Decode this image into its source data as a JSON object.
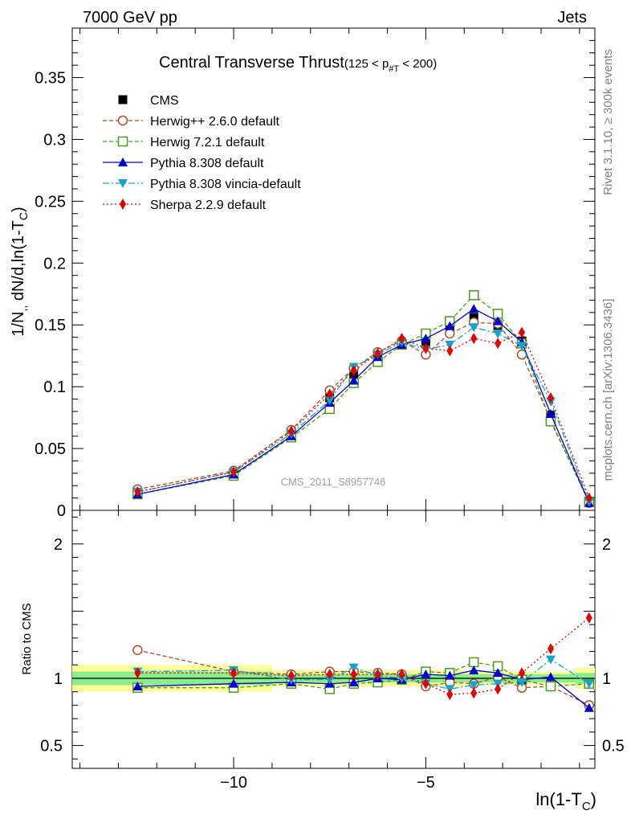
{
  "header": {
    "left": "7000 GeV pp",
    "right": "Jets"
  },
  "side_labels": {
    "rivet": "Rivet 3.1.10, ≥ 300k events",
    "mcplots": "mcplots.cern.ch [arXiv:1306.3436]"
  },
  "watermark": "CMS_2011_S8957746",
  "title": {
    "main": "Central Transverse Thrust",
    "range_a": "(125 < p",
    "range_sub": "#T",
    "range_b": " < 200)"
  },
  "chart_data": [
    {
      "type": "line",
      "panel": "main",
      "ylabel_parts": [
        "1/N",
        ",,",
        " dN/d,ln(1-T",
        "C",
        ")"
      ],
      "ylim": [
        0,
        0.39
      ],
      "xlim": [
        -14.2,
        -0.6
      ],
      "yticks": [
        "0",
        "0.05",
        "0.1",
        "0.15",
        "0.2",
        "0.25",
        "0.3",
        "0.35"
      ],
      "legend_placement": "top-left",
      "x": [
        -12.5,
        -10.0,
        -8.5,
        -7.5,
        -6.875,
        -6.25,
        -5.625,
        -5.0,
        -4.375,
        -3.75,
        -3.125,
        -2.5,
        -1.75,
        -0.75
      ],
      "series": [
        {
          "name": "CMS",
          "color": "#000000",
          "marker": "square-filled",
          "dash": "none",
          "values": [
            0.014,
            0.03,
            0.063,
            0.091,
            0.109,
            0.123,
            0.135,
            0.135,
            0.147,
            0.156,
            0.148,
            0.137,
            0.077,
            0.007
          ]
        },
        {
          "name": "Herwig++ 2.6.0 default",
          "color": "#a0522d",
          "marker": "circle-open",
          "dash": "5,3",
          "values": [
            0.017,
            0.032,
            0.065,
            0.097,
            0.115,
            0.128,
            0.137,
            0.126,
            0.143,
            0.152,
            0.151,
            0.126,
            0.073,
            0.006
          ]
        },
        {
          "name": "Herwig 7.2.1 default",
          "color": "#4a9a1e",
          "marker": "square-open",
          "dash": "5,3",
          "values": [
            0.013,
            0.028,
            0.059,
            0.082,
            0.103,
            0.12,
            0.134,
            0.143,
            0.153,
            0.174,
            0.159,
            0.135,
            0.072,
            0.007
          ]
        },
        {
          "name": "Pythia 8.308 default",
          "color": "#0000cc",
          "marker": "triangle-up",
          "dash": "none",
          "values": [
            0.013,
            0.029,
            0.06,
            0.087,
            0.105,
            0.124,
            0.134,
            0.139,
            0.149,
            0.163,
            0.153,
            0.136,
            0.078,
            0.006
          ]
        },
        {
          "name": "Pythia 8.308 vincia-default",
          "color": "#1aa3c4",
          "marker": "triangle-down",
          "dash": "8,3,2,3",
          "values": [
            0.015,
            0.031,
            0.062,
            0.089,
            0.116,
            0.126,
            0.136,
            0.13,
            0.134,
            0.148,
            0.143,
            0.133,
            0.088,
            0.007
          ]
        },
        {
          "name": "Sherpa 2.2.9 default",
          "color": "#e00000",
          "marker": "diamond",
          "dash": "2,3",
          "values": [
            0.015,
            0.031,
            0.064,
            0.094,
            0.113,
            0.127,
            0.139,
            0.131,
            0.129,
            0.139,
            0.135,
            0.144,
            0.091,
            0.01
          ]
        }
      ]
    },
    {
      "type": "line",
      "panel": "ratio",
      "xlabel_parts": [
        "ln(1-T",
        "C",
        ")"
      ],
      "ylabel": "Ratio to CMS",
      "ylim": [
        0.33,
        2.25
      ],
      "xticks": [
        "−10",
        "−5"
      ],
      "xtick_values": [
        -10,
        -5
      ],
      "yticks": [
        "0.5",
        "1",
        "2"
      ],
      "ytick_values": [
        0.5,
        1,
        2
      ],
      "bands": {
        "inner_color": "#8ced8c",
        "outer_color": "#ffff99",
        "segments": [
          {
            "x": [
              -14.2,
              -9.0
            ],
            "inner": [
              0.95,
              1.05
            ],
            "outer": [
              0.9,
              1.1
            ]
          },
          {
            "x": [
              -9.0,
              -4.0
            ],
            "inner": [
              0.97,
              1.03
            ],
            "outer": [
              0.94,
              1.06
            ]
          },
          {
            "x": [
              -4.0,
              -1.1
            ],
            "inner": [
              0.97,
              1.03
            ],
            "outer": [
              0.95,
              1.05
            ]
          },
          {
            "x": [
              -1.1,
              -0.6
            ],
            "inner": [
              0.96,
              1.04
            ],
            "outer": [
              0.92,
              1.08
            ]
          }
        ]
      },
      "series": [
        {
          "name": "Herwig++ 2.6.0 default",
          "color": "#a0522d",
          "marker": "circle-open",
          "dash": "5,3",
          "values": [
            1.21,
            1.05,
            1.03,
            1.05,
            1.05,
            1.04,
            1.03,
            0.94,
            0.97,
            0.96,
            1.01,
            0.93,
            0.94,
            0.8
          ]
        },
        {
          "name": "Herwig 7.2.1 default",
          "color": "#4a9a1e",
          "marker": "square-open",
          "dash": "5,3",
          "values": [
            0.93,
            0.93,
            0.96,
            0.92,
            0.96,
            0.97,
            0.99,
            1.05,
            1.04,
            1.12,
            1.09,
            0.99,
            0.94,
            0.96
          ]
        },
        {
          "name": "Pythia 8.308 default",
          "color": "#0000cc",
          "marker": "triangle-up",
          "dash": "none",
          "values": [
            0.94,
            0.96,
            0.97,
            0.96,
            0.97,
            1.0,
            0.99,
            1.03,
            1.02,
            1.06,
            1.04,
            0.99,
            1.01,
            0.78
          ]
        },
        {
          "name": "Pythia 8.308 vincia-default",
          "color": "#1aa3c4",
          "marker": "triangle-down",
          "dash": "8,3,2,3",
          "values": [
            1.05,
            1.06,
            0.99,
            0.99,
            1.08,
            1.02,
            1.0,
            0.96,
            0.92,
            0.95,
            0.96,
            0.97,
            1.14,
            0.96
          ]
        },
        {
          "name": "Sherpa 2.2.9 default",
          "color": "#e00000",
          "marker": "diamond",
          "dash": "2,3",
          "values": [
            1.04,
            1.04,
            1.02,
            1.03,
            1.03,
            1.03,
            1.03,
            0.96,
            0.88,
            0.89,
            0.92,
            1.04,
            1.22,
            1.45
          ]
        }
      ]
    }
  ]
}
